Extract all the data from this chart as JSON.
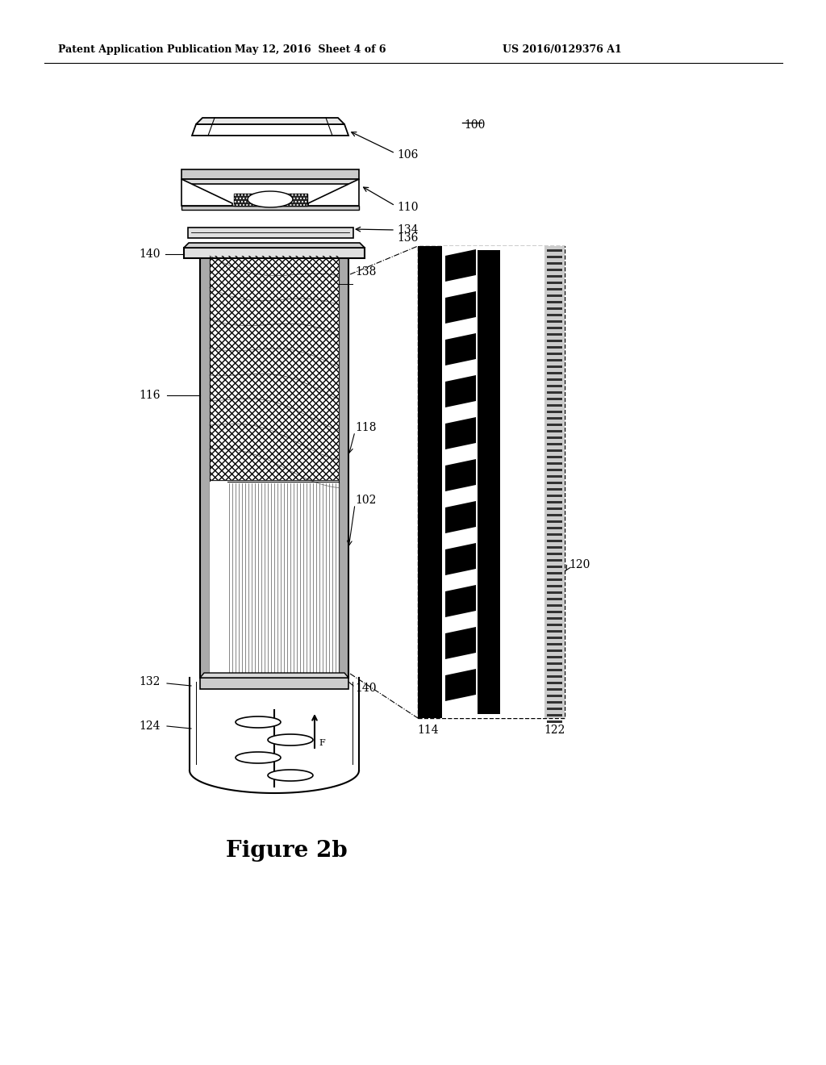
{
  "bg_color": "#ffffff",
  "header_left": "Patent Application Publication",
  "header_mid": "May 12, 2016  Sheet 4 of 6",
  "header_right": "US 2016/0129376 A1",
  "figure_label": "Figure 2b",
  "ref_100": "100",
  "ref_106": "106",
  "ref_110": "110",
  "ref_134": "134",
  "ref_136": "136",
  "ref_138": "138",
  "ref_140_top": "140",
  "ref_116": "116",
  "ref_118": "118",
  "ref_102": "102",
  "ref_140_bot": "140",
  "ref_132": "132",
  "ref_124": "124",
  "ref_120": "120",
  "ref_114": "114",
  "ref_122": "122"
}
